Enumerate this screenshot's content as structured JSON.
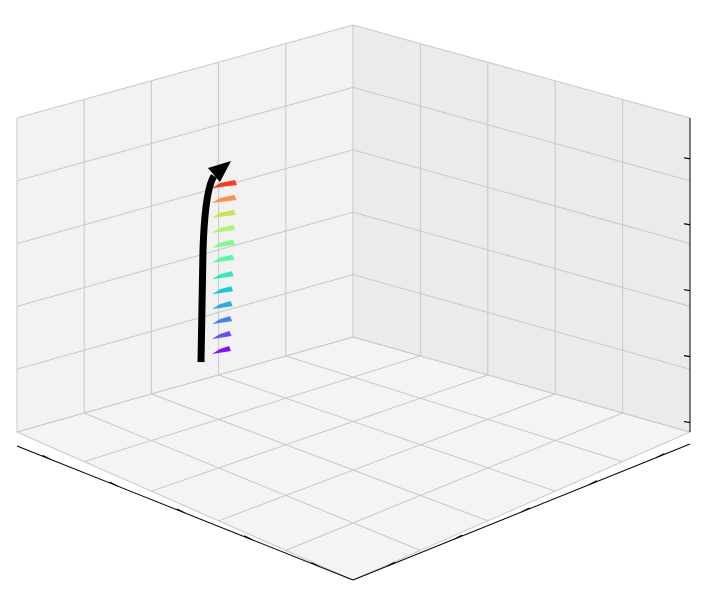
{
  "chart_data": {
    "type": "3d-scatter-trajectory",
    "title": "",
    "xlabel": "",
    "ylabel": "",
    "zlabel": "",
    "tick_labels_visible": false,
    "grid": true,
    "pane_color": "#f0f0f0",
    "grid_color": "#c8c8c8",
    "axis_color": "#000000",
    "trajectory": {
      "color": "#000000",
      "arrowhead": true
    },
    "series": [
      {
        "t": 0.0,
        "color": "#7f00ff"
      },
      {
        "t": 0.09,
        "color": "#5e44fb"
      },
      {
        "t": 0.18,
        "color": "#3c7af2"
      },
      {
        "t": 0.27,
        "color": "#1ca5e4"
      },
      {
        "t": 0.36,
        "color": "#06c9d0"
      },
      {
        "t": 0.45,
        "color": "#28e6b9"
      },
      {
        "t": 0.55,
        "color": "#4cf8a0"
      },
      {
        "t": 0.64,
        "color": "#70fe85"
      },
      {
        "t": 0.73,
        "color": "#a4f66a"
      },
      {
        "t": 0.82,
        "color": "#c8e04e"
      },
      {
        "t": 0.91,
        "color": "#ff8a3a"
      },
      {
        "t": 1.0,
        "color": "#ff2d14"
      }
    ]
  }
}
